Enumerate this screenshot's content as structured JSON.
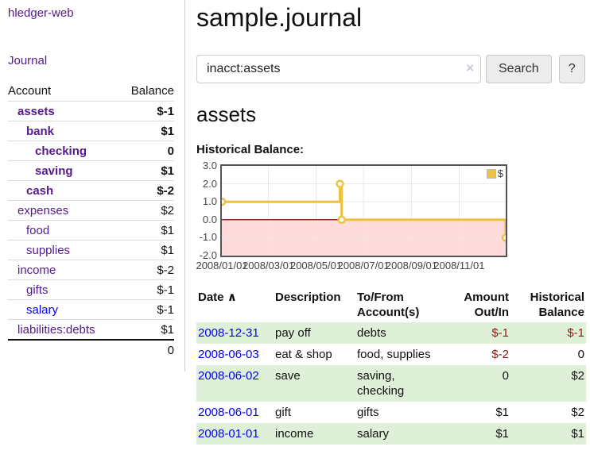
{
  "colors": {
    "link_purple": "#551a8b",
    "link_blue": "#0000ee",
    "negative_strong": "#8b1d1d",
    "negative_soft": "#c07272",
    "row_stripe_green": "#dff0d8",
    "series_yellow": "#edc240"
  },
  "sidebar": {
    "brand": "hledger-web",
    "journal_link": "Journal",
    "accounts_table": {
      "headers": [
        "Account",
        "Balance"
      ],
      "rows": [
        {
          "name": "assets",
          "depth": 1,
          "bold": true,
          "balance": "$-1",
          "neg": "neg-strong",
          "link": "purple"
        },
        {
          "name": "bank",
          "depth": 2,
          "bold": true,
          "balance": "$1",
          "neg": null,
          "link": "purple"
        },
        {
          "name": "checking",
          "depth": 3,
          "bold": true,
          "balance": "0",
          "neg": null,
          "link": "purple"
        },
        {
          "name": "saving",
          "depth": 3,
          "bold": true,
          "balance": "$1",
          "neg": null,
          "link": "purple"
        },
        {
          "name": "cash",
          "depth": 2,
          "bold": true,
          "balance": "$-2",
          "neg": "neg-strong",
          "link": "purple"
        },
        {
          "name": "expenses",
          "depth": 1,
          "bold": false,
          "balance": "$2",
          "neg": null,
          "link": "purple"
        },
        {
          "name": "food",
          "depth": 2,
          "bold": false,
          "balance": "$1",
          "neg": null,
          "link": "purple"
        },
        {
          "name": "supplies",
          "depth": 2,
          "bold": false,
          "balance": "$1",
          "neg": null,
          "link": "purple"
        },
        {
          "name": "income",
          "depth": 1,
          "bold": false,
          "balance": "$-2",
          "neg": "neg-soft",
          "link": "purple"
        },
        {
          "name": "gifts",
          "depth": 2,
          "bold": false,
          "balance": "$-1",
          "neg": "neg-soft",
          "link": "purple"
        },
        {
          "name": "salary",
          "depth": 2,
          "bold": false,
          "balance": "$-1",
          "neg": "neg-soft",
          "link": "blue"
        },
        {
          "name": "liabilities:debts",
          "depth": 1,
          "bold": false,
          "balance": "$1",
          "neg": null,
          "link": "purple"
        }
      ],
      "total": "0"
    }
  },
  "main": {
    "title": "sample.journal",
    "search": {
      "value": "inacct:assets",
      "clear_icon": "×",
      "search_button": "Search",
      "help_button": "?"
    },
    "account_heading": "assets",
    "chart_heading": "Historical Balance:"
  },
  "chart_data": {
    "type": "line",
    "title": "Historical Balance",
    "step": true,
    "grid": true,
    "legend_label": "$",
    "legend_position": "top-right",
    "ylim": [
      -2,
      3
    ],
    "yticks": [
      {
        "v": 3,
        "label": "3.0"
      },
      {
        "v": 2,
        "label": "2.0"
      },
      {
        "v": 1,
        "label": "1.0"
      },
      {
        "v": 0,
        "label": "0.0"
      },
      {
        "v": -1,
        "label": "-1.0"
      },
      {
        "v": -2,
        "label": "-2.0"
      }
    ],
    "xticks": [
      {
        "xf": 0.0,
        "label": "2008/01/01"
      },
      {
        "xf": 0.164,
        "label": "2008/03/01"
      },
      {
        "xf": 0.332,
        "label": "2008/05/01"
      },
      {
        "xf": 0.499,
        "label": "2008/07/01"
      },
      {
        "xf": 0.668,
        "label": "2008/09/01"
      },
      {
        "xf": 0.836,
        "label": "2008/11/01"
      }
    ],
    "series": [
      {
        "name": "$",
        "color": "#edc240",
        "points": [
          {
            "date": "2008-01-01",
            "xf": 0.0,
            "y": 1
          },
          {
            "date": "2008-06-01",
            "xf": 0.416,
            "y": 2
          },
          {
            "date": "2008-06-03",
            "xf": 0.422,
            "y": 0
          },
          {
            "date": "2008-12-31",
            "xf": 1.0,
            "y": -1
          }
        ]
      }
    ],
    "style": {
      "negative_region_fill": "#ffdbdb",
      "zero_line": "#9a2626",
      "grid_color": "#e8e8e8",
      "plot_border": "#545454"
    }
  },
  "register": {
    "headers": {
      "date": "Date",
      "sort_arrow": "∧",
      "description": "Description",
      "accounts": "To/From\nAccount(s)",
      "amount": "Amount\nOut/In",
      "balance": "Historical\nBalance"
    },
    "rows": [
      {
        "date": "2008-12-31",
        "description": "pay off",
        "accounts": "debts",
        "amount": "$-1",
        "amount_neg": true,
        "balance": "$-1",
        "balance_neg": true,
        "shaded": true
      },
      {
        "date": "2008-06-03",
        "description": "eat & shop",
        "accounts": "food, supplies",
        "amount": "$-2",
        "amount_neg": true,
        "balance": "0",
        "balance_neg": false,
        "shaded": false
      },
      {
        "date": "2008-06-02",
        "description": "save",
        "accounts": "saving,\nchecking",
        "amount": "0",
        "amount_neg": false,
        "balance": "$2",
        "balance_neg": false,
        "shaded": true
      },
      {
        "date": "2008-06-01",
        "description": "gift",
        "accounts": "gifts",
        "amount": "$1",
        "amount_neg": false,
        "balance": "$2",
        "balance_neg": false,
        "shaded": false
      },
      {
        "date": "2008-01-01",
        "description": "income",
        "accounts": "salary",
        "amount": "$1",
        "amount_neg": false,
        "balance": "$1",
        "balance_neg": false,
        "shaded": true
      }
    ]
  }
}
